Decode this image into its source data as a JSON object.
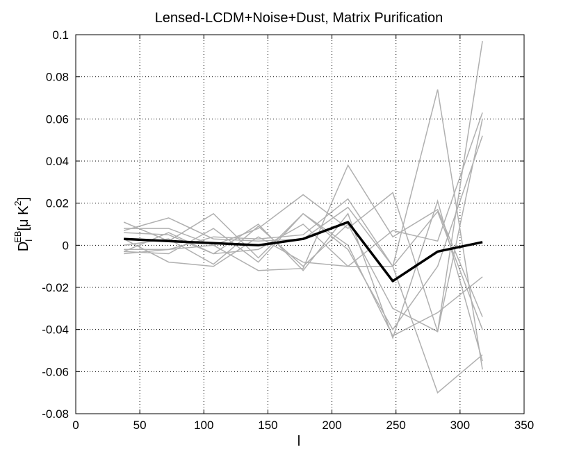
{
  "chart_data": {
    "type": "line",
    "title": "Lensed-LCDM+Noise+Dust, Matrix Purification",
    "xlabel": "l",
    "ylabel": {
      "base": "D",
      "sub": "l",
      "sup": "EB",
      "unit_pre": "[μ K",
      "unit_sup": "2",
      "unit_post": "]"
    },
    "xlim": [
      0,
      350
    ],
    "ylim": [
      -0.08,
      0.1
    ],
    "xticks": [
      0,
      50,
      100,
      150,
      200,
      250,
      300,
      350
    ],
    "yticks": [
      -0.08,
      -0.06,
      -0.04,
      -0.02,
      0,
      0.02,
      0.04,
      0.06,
      0.08,
      0.1
    ],
    "xtick_labels": [
      "0",
      "50",
      "100",
      "150",
      "200",
      "250",
      "300",
      "350"
    ],
    "ytick_labels": [
      "-0.08",
      "-0.06",
      "-0.04",
      "-0.02",
      "0",
      "0.02",
      "0.04",
      "0.06",
      "0.08",
      "0.1"
    ],
    "grid": true,
    "x": [
      37.5,
      72.5,
      107.5,
      142.5,
      177.5,
      212.5,
      247.5,
      282.5,
      317.5
    ],
    "realization_color": "#b0b0b0",
    "mean_color": "#000000",
    "realizations": [
      [
        0.008,
        0.008,
        0.0,
        0.008,
        0.024,
        0.008,
        0.025,
        -0.041,
        0.097
      ],
      [
        0.006,
        0.005,
        -0.004,
        0.01,
        -0.012,
        0.015,
        -0.044,
        0.021,
        -0.055
      ],
      [
        -0.004,
        -0.002,
        0.004,
        0.003,
        0.005,
        0.022,
        -0.01,
        0.074,
        -0.059
      ],
      [
        0.011,
        0.002,
        0.015,
        -0.006,
        0.015,
        0.0,
        -0.043,
        -0.032,
        -0.015
      ],
      [
        0.003,
        -0.008,
        -0.01,
        0.004,
        -0.008,
        -0.01,
        0.007,
        0.002,
        0.063
      ],
      [
        -0.002,
        -0.002,
        0.0,
        -0.012,
        -0.011,
        0.038,
        0.004,
        0.017,
        -0.034
      ],
      [
        0.0,
        0.003,
        -0.009,
        0.009,
        -0.01,
        0.01,
        -0.03,
        -0.041,
        0.06
      ],
      [
        -0.003,
        -0.004,
        0.008,
        -0.008,
        0.015,
        -0.002,
        -0.04,
        -0.01,
        0.052
      ],
      [
        0.007,
        0.013,
        0.003,
        0.002,
        0.003,
        0.018,
        -0.01,
        -0.07,
        -0.052
      ],
      [
        -0.003,
        0.006,
        -0.004,
        -0.002,
        0.01,
        -0.01,
        -0.01,
        0.016,
        -0.04
      ]
    ],
    "mean": [
      0.003,
      0.002,
      0.001,
      0.0,
      0.003,
      0.011,
      -0.017,
      -0.003,
      0.0015
    ]
  }
}
